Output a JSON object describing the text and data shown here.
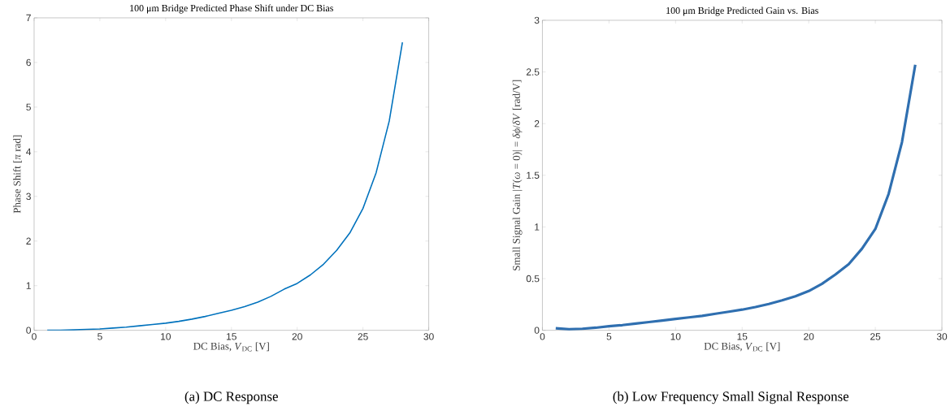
{
  "chart_data": [
    {
      "type": "line",
      "title": "100 μm Bridge Predicted Phase Shift under DC Bias",
      "xlabel": "DC Bias, *V*$_{DC}$ [V]",
      "ylabel": "Phase Shift [*π* rad]",
      "x": [
        1,
        2,
        3,
        4,
        5,
        6,
        7,
        8,
        9,
        10,
        11,
        12,
        13,
        14,
        15,
        16,
        17,
        18,
        19,
        20,
        21,
        22,
        23,
        24,
        25,
        26,
        27,
        28
      ],
      "series": [
        {
          "color": "#0072bd",
          "values": [
            0.0,
            0.0,
            0.01,
            0.02,
            0.03,
            0.05,
            0.07,
            0.1,
            0.13,
            0.16,
            0.2,
            0.25,
            0.31,
            0.38,
            0.45,
            0.53,
            0.63,
            0.76,
            0.92,
            1.05,
            1.24,
            1.48,
            1.79,
            2.18,
            2.73,
            3.53,
            4.69,
            6.45
          ]
        }
      ],
      "xlim": [
        0,
        30
      ],
      "ylim": [
        0,
        7
      ],
      "xticks": [
        0,
        5,
        10,
        15,
        20,
        25,
        30
      ],
      "yticks": [
        0,
        1,
        2,
        3,
        4,
        5,
        6,
        7
      ],
      "annotations": [
        "(a) DC Response"
      ]
    },
    {
      "type": "line",
      "title": "100 μm Bridge Predicted Gain vs. Bias",
      "xlabel": "DC Bias, *V*$_{DC}$ [V]",
      "ylabel": "Small Signal Gain |*T*(*ω* = 0)| = *δϕ*/*δV* [rad/V]",
      "x": [
        1,
        2,
        3,
        4,
        5,
        6,
        7,
        8,
        9,
        10,
        11,
        12,
        13,
        14,
        15,
        16,
        17,
        18,
        19,
        20,
        21,
        22,
        23,
        24,
        25,
        26,
        27,
        28
      ],
      "series": [
        {
          "color": "#2f6fb0",
          "values": [
            0.02,
            0.01,
            0.015,
            0.025,
            0.04,
            0.05,
            0.065,
            0.08,
            0.095,
            0.11,
            0.125,
            0.14,
            0.16,
            0.18,
            0.2,
            0.225,
            0.255,
            0.29,
            0.33,
            0.38,
            0.45,
            0.54,
            0.64,
            0.79,
            0.98,
            1.32,
            1.82,
            2.57
          ]
        }
      ],
      "xlim": [
        0,
        30
      ],
      "ylim": [
        0,
        3
      ],
      "xticks": [
        0,
        5,
        10,
        15,
        20,
        25,
        30
      ],
      "yticks": [
        0,
        0.5,
        1,
        1.5,
        2,
        2.5,
        3
      ],
      "annotations": [
        "(b) Low Frequency Small Signal Response"
      ]
    }
  ]
}
